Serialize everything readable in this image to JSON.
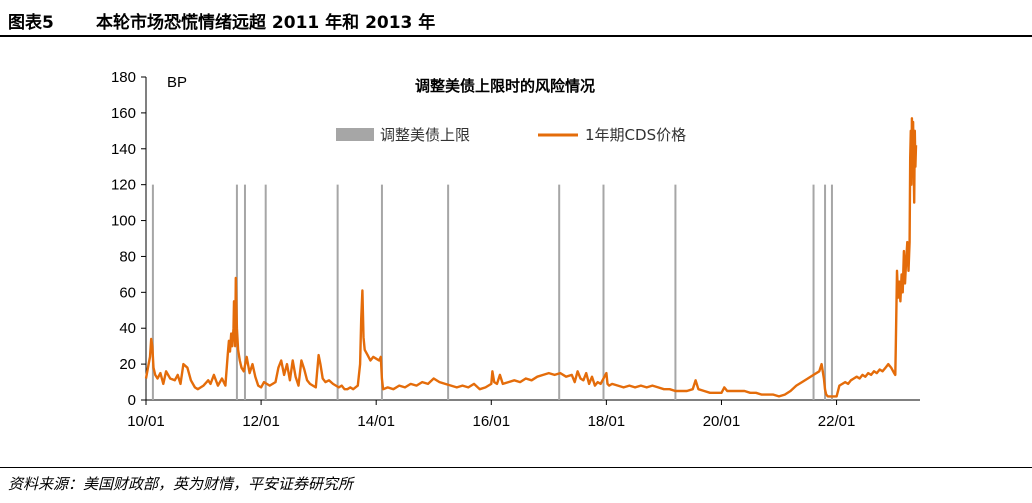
{
  "header": {
    "figure_no": "图表5",
    "title": "本轮市场恐慌情绪远超 2011 年和 2013 年"
  },
  "source": {
    "text": "资料来源：美国财政部，英为财情，平安证券研究所"
  },
  "colors": {
    "cds_line": "#e46c0a",
    "debt_ceiling_bar": "#a6a6a6",
    "axis": "#000000"
  },
  "chart_data": {
    "type": "line",
    "title": "调整美债上限时的风险情况",
    "ylabel": "BP",
    "xlabel": "",
    "ylim": [
      0,
      180
    ],
    "yticks": [
      0,
      20,
      40,
      60,
      80,
      100,
      120,
      140,
      160,
      180
    ],
    "xlim": [
      2010.0,
      2023.45
    ],
    "xticks": [
      {
        "x": 2010.0,
        "label": "10/01"
      },
      {
        "x": 2012.0,
        "label": "12/01"
      },
      {
        "x": 2014.0,
        "label": "14/01"
      },
      {
        "x": 2016.0,
        "label": "16/01"
      },
      {
        "x": 2018.0,
        "label": "18/01"
      },
      {
        "x": 2020.0,
        "label": "20/01"
      },
      {
        "x": 2022.0,
        "label": "22/01"
      }
    ],
    "legend_position": "top-center",
    "grid": false,
    "series": [
      {
        "name": "调整美债上限",
        "kind": "vertical-bars",
        "x": [
          2010.12,
          2011.58,
          2011.72,
          2012.08,
          2013.33,
          2014.1,
          2015.25,
          2017.18,
          2017.95,
          2019.2,
          2021.6,
          2021.8,
          2021.92
        ]
      },
      {
        "name": "1年期CDS价格",
        "kind": "line",
        "points": [
          [
            2010.0,
            12
          ],
          [
            2010.04,
            19
          ],
          [
            2010.07,
            24
          ],
          [
            2010.09,
            34
          ],
          [
            2010.11,
            30
          ],
          [
            2010.13,
            18
          ],
          [
            2010.16,
            14
          ],
          [
            2010.2,
            12
          ],
          [
            2010.25,
            15
          ],
          [
            2010.3,
            9
          ],
          [
            2010.35,
            16
          ],
          [
            2010.42,
            12
          ],
          [
            2010.5,
            11
          ],
          [
            2010.55,
            14
          ],
          [
            2010.6,
            9
          ],
          [
            2010.65,
            20
          ],
          [
            2010.72,
            18
          ],
          [
            2010.78,
            11
          ],
          [
            2010.85,
            7
          ],
          [
            2010.9,
            6
          ],
          [
            2010.95,
            7
          ],
          [
            2011.0,
            8
          ],
          [
            2011.08,
            11
          ],
          [
            2011.12,
            9
          ],
          [
            2011.18,
            14
          ],
          [
            2011.25,
            8
          ],
          [
            2011.32,
            12
          ],
          [
            2011.38,
            8
          ],
          [
            2011.42,
            25
          ],
          [
            2011.44,
            33
          ],
          [
            2011.46,
            27
          ],
          [
            2011.48,
            37
          ],
          [
            2011.5,
            30
          ],
          [
            2011.52,
            40
          ],
          [
            2011.53,
            55
          ],
          [
            2011.55,
            30
          ],
          [
            2011.56,
            68
          ],
          [
            2011.58,
            40
          ],
          [
            2011.6,
            28
          ],
          [
            2011.63,
            22
          ],
          [
            2011.66,
            18
          ],
          [
            2011.7,
            16
          ],
          [
            2011.75,
            24
          ],
          [
            2011.8,
            15
          ],
          [
            2011.85,
            20
          ],
          [
            2011.9,
            13
          ],
          [
            2011.95,
            8
          ],
          [
            2012.0,
            7
          ],
          [
            2012.05,
            10
          ],
          [
            2012.1,
            9
          ],
          [
            2012.15,
            8
          ],
          [
            2012.2,
            9
          ],
          [
            2012.25,
            10
          ],
          [
            2012.3,
            18
          ],
          [
            2012.35,
            22
          ],
          [
            2012.4,
            14
          ],
          [
            2012.45,
            20
          ],
          [
            2012.5,
            11
          ],
          [
            2012.55,
            22
          ],
          [
            2012.6,
            13
          ],
          [
            2012.65,
            8
          ],
          [
            2012.7,
            22
          ],
          [
            2012.75,
            17
          ],
          [
            2012.8,
            11
          ],
          [
            2012.85,
            9
          ],
          [
            2012.9,
            8
          ],
          [
            2012.95,
            7
          ],
          [
            2013.0,
            25
          ],
          [
            2013.03,
            20
          ],
          [
            2013.07,
            12
          ],
          [
            2013.12,
            10
          ],
          [
            2013.18,
            11
          ],
          [
            2013.25,
            9
          ],
          [
            2013.3,
            8
          ],
          [
            2013.35,
            7
          ],
          [
            2013.4,
            8
          ],
          [
            2013.45,
            6
          ],
          [
            2013.5,
            6
          ],
          [
            2013.55,
            7
          ],
          [
            2013.6,
            6
          ],
          [
            2013.68,
            8
          ],
          [
            2013.72,
            20
          ],
          [
            2013.74,
            45
          ],
          [
            2013.76,
            61
          ],
          [
            2013.78,
            35
          ],
          [
            2013.8,
            28
          ],
          [
            2013.85,
            25
          ],
          [
            2013.9,
            22
          ],
          [
            2013.95,
            24
          ],
          [
            2014.0,
            23
          ],
          [
            2014.05,
            22
          ],
          [
            2014.08,
            24
          ],
          [
            2014.1,
            12
          ],
          [
            2014.12,
            6
          ],
          [
            2014.2,
            7
          ],
          [
            2014.3,
            6
          ],
          [
            2014.4,
            8
          ],
          [
            2014.5,
            7
          ],
          [
            2014.6,
            9
          ],
          [
            2014.7,
            8
          ],
          [
            2014.8,
            10
          ],
          [
            2014.9,
            9
          ],
          [
            2015.0,
            12
          ],
          [
            2015.1,
            10
          ],
          [
            2015.2,
            9
          ],
          [
            2015.3,
            8
          ],
          [
            2015.4,
            7
          ],
          [
            2015.5,
            8
          ],
          [
            2015.6,
            7
          ],
          [
            2015.7,
            9
          ],
          [
            2015.8,
            6
          ],
          [
            2015.9,
            7
          ],
          [
            2016.0,
            9
          ],
          [
            2016.02,
            16
          ],
          [
            2016.05,
            10
          ],
          [
            2016.1,
            9
          ],
          [
            2016.15,
            14
          ],
          [
            2016.2,
            9
          ],
          [
            2016.3,
            10
          ],
          [
            2016.4,
            11
          ],
          [
            2016.5,
            10
          ],
          [
            2016.6,
            12
          ],
          [
            2016.7,
            11
          ],
          [
            2016.8,
            13
          ],
          [
            2016.9,
            14
          ],
          [
            2017.0,
            15
          ],
          [
            2017.1,
            14
          ],
          [
            2017.2,
            15
          ],
          [
            2017.3,
            13
          ],
          [
            2017.4,
            14
          ],
          [
            2017.45,
            10
          ],
          [
            2017.5,
            16
          ],
          [
            2017.55,
            12
          ],
          [
            2017.6,
            11
          ],
          [
            2017.65,
            15
          ],
          [
            2017.7,
            9
          ],
          [
            2017.75,
            13
          ],
          [
            2017.8,
            8
          ],
          [
            2017.85,
            10
          ],
          [
            2017.9,
            9
          ],
          [
            2018.0,
            15
          ],
          [
            2018.02,
            9
          ],
          [
            2018.05,
            8
          ],
          [
            2018.1,
            9
          ],
          [
            2018.2,
            8
          ],
          [
            2018.3,
            7
          ],
          [
            2018.4,
            8
          ],
          [
            2018.5,
            7
          ],
          [
            2018.6,
            8
          ],
          [
            2018.7,
            7
          ],
          [
            2018.8,
            8
          ],
          [
            2018.9,
            7
          ],
          [
            2019.0,
            6
          ],
          [
            2019.1,
            6
          ],
          [
            2019.2,
            5
          ],
          [
            2019.3,
            5
          ],
          [
            2019.4,
            5
          ],
          [
            2019.5,
            6
          ],
          [
            2019.55,
            11
          ],
          [
            2019.6,
            6
          ],
          [
            2019.7,
            5
          ],
          [
            2019.8,
            4
          ],
          [
            2019.9,
            4
          ],
          [
            2020.0,
            4
          ],
          [
            2020.05,
            7
          ],
          [
            2020.1,
            5
          ],
          [
            2020.2,
            5
          ],
          [
            2020.3,
            5
          ],
          [
            2020.4,
            5
          ],
          [
            2020.5,
            4
          ],
          [
            2020.6,
            4
          ],
          [
            2020.7,
            3
          ],
          [
            2020.8,
            3
          ],
          [
            2020.9,
            3
          ],
          [
            2021.0,
            2
          ],
          [
            2021.1,
            3
          ],
          [
            2021.2,
            5
          ],
          [
            2021.3,
            8
          ],
          [
            2021.4,
            10
          ],
          [
            2021.5,
            12
          ],
          [
            2021.6,
            14
          ],
          [
            2021.7,
            16
          ],
          [
            2021.74,
            20
          ],
          [
            2021.78,
            12
          ],
          [
            2021.8,
            6
          ],
          [
            2021.82,
            3
          ],
          [
            2021.85,
            2
          ],
          [
            2021.9,
            2
          ],
          [
            2021.95,
            2
          ],
          [
            2022.0,
            2
          ],
          [
            2022.05,
            8
          ],
          [
            2022.1,
            9
          ],
          [
            2022.15,
            10
          ],
          [
            2022.2,
            9
          ],
          [
            2022.25,
            11
          ],
          [
            2022.3,
            12
          ],
          [
            2022.35,
            13
          ],
          [
            2022.4,
            12
          ],
          [
            2022.45,
            14
          ],
          [
            2022.5,
            13
          ],
          [
            2022.55,
            15
          ],
          [
            2022.6,
            14
          ],
          [
            2022.65,
            16
          ],
          [
            2022.7,
            15
          ],
          [
            2022.75,
            17
          ],
          [
            2022.8,
            16
          ],
          [
            2022.85,
            18
          ],
          [
            2022.9,
            20
          ],
          [
            2022.95,
            18
          ],
          [
            2023.0,
            15
          ],
          [
            2023.02,
            14
          ],
          [
            2023.03,
            30
          ],
          [
            2023.05,
            72
          ],
          [
            2023.07,
            57
          ],
          [
            2023.09,
            66
          ],
          [
            2023.11,
            55
          ],
          [
            2023.13,
            70
          ],
          [
            2023.15,
            60
          ],
          [
            2023.17,
            83
          ],
          [
            2023.19,
            65
          ],
          [
            2023.21,
            78
          ],
          [
            2023.23,
            88
          ],
          [
            2023.25,
            72
          ],
          [
            2023.27,
            88
          ],
          [
            2023.28,
            135
          ],
          [
            2023.29,
            150
          ],
          [
            2023.3,
            120
          ],
          [
            2023.31,
            157
          ],
          [
            2023.32,
            135
          ],
          [
            2023.33,
            155
          ],
          [
            2023.35,
            110
          ],
          [
            2023.36,
            150
          ],
          [
            2023.37,
            130
          ],
          [
            2023.38,
            142
          ]
        ]
      }
    ]
  }
}
